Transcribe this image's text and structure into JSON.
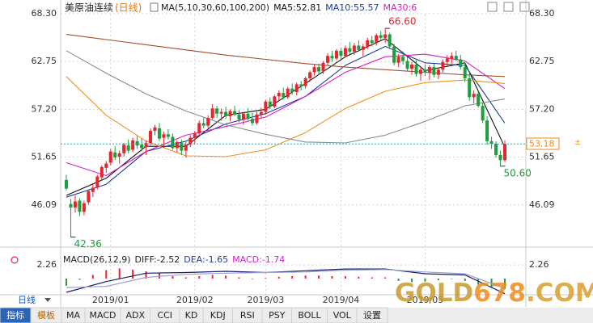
{
  "chart_data": {
    "type": "candlestick",
    "title": "美原油连续",
    "period": "(日线)",
    "indicator": "MA(5,10,30,60,100,200)",
    "period_label": "日线",
    "categories": [
      null,
      null,
      null,
      null,
      null,
      null,
      null,
      null,
      null,
      null,
      "2019/01",
      null,
      null,
      null,
      null,
      null,
      null,
      null,
      null,
      null,
      null,
      null,
      null,
      null,
      null,
      null,
      null,
      null,
      null,
      "2019/02",
      null,
      null,
      null,
      null,
      null,
      null,
      null,
      null,
      null,
      null,
      null,
      null,
      null,
      null,
      null,
      "2019/03",
      null,
      null,
      null,
      null,
      null,
      null,
      null,
      null,
      null,
      null,
      null,
      null,
      null,
      null,
      null,
      null,
      "2019/04",
      null,
      null,
      null,
      null,
      null,
      null,
      null,
      null,
      null,
      null,
      null,
      null,
      null,
      null,
      null,
      null,
      null,
      null,
      "2019/05",
      null,
      null,
      null,
      null,
      null,
      null,
      null,
      null,
      null,
      null,
      null,
      null,
      null,
      null,
      null,
      null,
      null,
      null
    ],
    "candles": [
      [
        49.0,
        49.6,
        47.8,
        48.0
      ],
      [
        46.2,
        46.8,
        42.36,
        45.8
      ],
      [
        45.8,
        47.2,
        45.2,
        46.5
      ],
      [
        46.6,
        46.9,
        44.8,
        45.3
      ],
      [
        45.3,
        46.6,
        44.9,
        46.3
      ],
      [
        46.4,
        47.9,
        46.1,
        47.7
      ],
      [
        47.6,
        48.5,
        47.0,
        48.1
      ],
      [
        48.2,
        49.6,
        47.9,
        49.4
      ],
      [
        49.3,
        50.7,
        48.9,
        50.5
      ],
      [
        50.4,
        51.2,
        49.8,
        50.9
      ],
      [
        51.0,
        52.6,
        50.7,
        52.3
      ],
      [
        52.2,
        52.9,
        51.3,
        51.6
      ],
      [
        51.7,
        52.4,
        50.9,
        52.1
      ],
      [
        52.1,
        53.3,
        51.7,
        53.1
      ],
      [
        53.0,
        53.7,
        52.1,
        52.4
      ],
      [
        52.5,
        53.9,
        52.2,
        53.6
      ],
      [
        53.5,
        54.1,
        52.6,
        53.0
      ],
      [
        53.1,
        53.8,
        52.3,
        52.7
      ],
      [
        52.8,
        53.6,
        51.9,
        53.3
      ],
      [
        53.3,
        55.0,
        53.0,
        54.7
      ],
      [
        54.7,
        55.4,
        54.2,
        55.1
      ],
      [
        55.0,
        55.6,
        53.5,
        53.8
      ],
      [
        53.9,
        54.6,
        52.9,
        54.3
      ],
      [
        54.3,
        54.9,
        53.7,
        54.0
      ],
      [
        54.0,
        54.4,
        52.5,
        52.7
      ],
      [
        52.7,
        53.6,
        52.2,
        53.4
      ],
      [
        53.3,
        53.7,
        51.9,
        52.4
      ],
      [
        52.4,
        53.4,
        51.6,
        53.1
      ],
      [
        53.1,
        54.2,
        52.8,
        53.9
      ],
      [
        53.9,
        54.7,
        53.2,
        54.4
      ],
      [
        54.4,
        55.9,
        54.2,
        55.6
      ],
      [
        55.6,
        56.2,
        55.0,
        55.3
      ],
      [
        55.3,
        56.5,
        55.0,
        56.2
      ],
      [
        56.2,
        57.8,
        56.0,
        57.3
      ],
      [
        57.3,
        57.6,
        56.2,
        56.7
      ],
      [
        56.7,
        57.3,
        55.9,
        56.9
      ],
      [
        56.9,
        57.5,
        56.1,
        56.4
      ],
      [
        56.4,
        57.2,
        55.8,
        57.0
      ],
      [
        57.0,
        57.6,
        56.4,
        56.6
      ],
      [
        56.6,
        57.1,
        55.7,
        56.0
      ],
      [
        56.0,
        56.9,
        55.4,
        56.7
      ],
      [
        56.7,
        57.3,
        55.9,
        56.1
      ],
      [
        56.1,
        56.8,
        55.3,
        55.6
      ],
      [
        55.6,
        56.9,
        55.4,
        56.6
      ],
      [
        56.6,
        57.4,
        56.1,
        56.9
      ],
      [
        56.9,
        58.3,
        56.6,
        58.1
      ],
      [
        58.1,
        58.6,
        57.2,
        57.5
      ],
      [
        57.5,
        58.9,
        57.3,
        58.7
      ],
      [
        58.7,
        59.4,
        58.2,
        59.1
      ],
      [
        59.1,
        59.7,
        58.3,
        58.6
      ],
      [
        58.6,
        59.8,
        58.4,
        59.6
      ],
      [
        59.6,
        60.2,
        58.9,
        59.2
      ],
      [
        59.2,
        60.3,
        58.8,
        60.1
      ],
      [
        60.1,
        60.5,
        59.4,
        59.9
      ],
      [
        59.9,
        61.0,
        59.6,
        60.8
      ],
      [
        60.8,
        61.7,
        60.4,
        61.5
      ],
      [
        61.5,
        62.4,
        61.1,
        62.1
      ],
      [
        62.1,
        62.5,
        61.2,
        61.6
      ],
      [
        61.6,
        62.8,
        61.3,
        62.6
      ],
      [
        62.6,
        63.7,
        62.3,
        63.4
      ],
      [
        63.4,
        64.0,
        62.7,
        63.1
      ],
      [
        63.1,
        64.2,
        62.9,
        64.0
      ],
      [
        64.0,
        64.3,
        63.0,
        63.4
      ],
      [
        63.4,
        64.6,
        63.2,
        64.3
      ],
      [
        64.3,
        65.0,
        63.6,
        63.9
      ],
      [
        63.9,
        64.9,
        63.5,
        64.6
      ],
      [
        64.6,
        65.2,
        63.9,
        64.1
      ],
      [
        64.1,
        64.8,
        63.4,
        64.5
      ],
      [
        64.5,
        65.5,
        64.2,
        65.2
      ],
      [
        65.2,
        65.7,
        64.5,
        64.9
      ],
      [
        64.9,
        66.0,
        64.6,
        65.8
      ],
      [
        65.8,
        66.3,
        65.2,
        65.5
      ],
      [
        65.5,
        66.6,
        64.9,
        65.9
      ],
      [
        65.9,
        66.1,
        64.2,
        64.5
      ],
      [
        64.5,
        64.8,
        62.3,
        62.6
      ],
      [
        62.6,
        63.6,
        62.1,
        63.3
      ],
      [
        63.3,
        63.9,
        62.4,
        62.8
      ],
      [
        62.8,
        63.3,
        61.6,
        61.9
      ],
      [
        61.9,
        62.7,
        61.2,
        62.4
      ],
      [
        62.4,
        62.9,
        61.0,
        61.3
      ],
      [
        61.3,
        62.1,
        60.5,
        61.8
      ],
      [
        61.8,
        62.4,
        61.1,
        61.5
      ],
      [
        61.5,
        62.3,
        60.6,
        62.1
      ],
      [
        62.1,
        62.5,
        60.9,
        61.2
      ],
      [
        61.2,
        62.0,
        60.7,
        61.8
      ],
      [
        61.8,
        63.0,
        61.5,
        62.7
      ],
      [
        62.7,
        63.5,
        62.2,
        63.1
      ],
      [
        63.1,
        63.8,
        62.5,
        63.4
      ],
      [
        63.4,
        64.0,
        62.8,
        63.0
      ],
      [
        63.0,
        63.5,
        61.8,
        62.1
      ],
      [
        62.1,
        62.6,
        60.4,
        60.8
      ],
      [
        60.8,
        61.3,
        58.2,
        58.6
      ],
      [
        58.6,
        59.4,
        57.9,
        59.0
      ],
      [
        59.0,
        59.3,
        57.4,
        57.6
      ],
      [
        57.6,
        58.0,
        55.6,
        55.9
      ],
      [
        55.9,
        56.4,
        53.1,
        53.5
      ],
      [
        53.5,
        54.0,
        52.6,
        53.2
      ],
      [
        53.2,
        53.5,
        51.6,
        51.9
      ],
      [
        51.9,
        52.4,
        50.6,
        51.3
      ],
      [
        51.3,
        53.6,
        51.1,
        53.18
      ]
    ],
    "up_color": "#e8252b",
    "down_color": "#1e9e3e",
    "ylim": [
      41.58,
      69.14
    ],
    "yticks": [
      {
        "value": 68.3,
        "label": "68.30"
      },
      62.75,
      {
        "value": 57.2,
        "label": "57.20"
      },
      51.65,
      46.09
    ],
    "last_price": 53.18,
    "annotations": [
      {
        "value": 66.6,
        "label": "66.60"
      },
      {
        "value": 50.6,
        "label": "50.60"
      },
      {
        "value": 42.36,
        "label": "42.36"
      }
    ],
    "ma_x": [
      0,
      9,
      18,
      27,
      36,
      45,
      54,
      63,
      72,
      81,
      90,
      99
    ],
    "ma_series": [
      {
        "name": "MA5:52.81",
        "color": "#111111",
        "values": [
          47.2,
          49.2,
          52.9,
          52.9,
          56.5,
          57.2,
          60.2,
          63.3,
          65.4,
          61.7,
          62.6,
          52.8
        ]
      },
      {
        "name": "MA10:55.57",
        "color": "#1f3c9b",
        "values": [
          47.0,
          48.5,
          52.3,
          53.5,
          55.5,
          56.7,
          58.7,
          62.3,
          64.5,
          62.6,
          62.3,
          55.6
        ]
      },
      {
        "name": "MA30:6",
        "color": "#d81ec8",
        "values": [
          51.0,
          49.5,
          52.3,
          54.2,
          55.2,
          56.3,
          58.7,
          61.5,
          63.3,
          63.6,
          62.8,
          59.6
        ]
      },
      {
        "color": "#f0901e",
        "values": [
          61.0,
          56.5,
          53.5,
          51.8,
          51.7,
          52.5,
          54.5,
          57.3,
          59.3,
          60.3,
          60.6,
          60.2
        ]
      },
      {
        "color": "#8c8c8c",
        "values": [
          64.0,
          61.4,
          59.0,
          57.0,
          55.4,
          54.3,
          53.4,
          53.3,
          54.2,
          55.8,
          57.6,
          58.4
        ]
      },
      {
        "color": "#a0502d",
        "values": [
          65.9,
          65.3,
          64.7,
          64.1,
          63.5,
          63.0,
          62.5,
          62.1,
          61.8,
          61.5,
          61.2,
          61.0
        ]
      }
    ],
    "macd": {
      "title": "MACD(26,12,9)",
      "ylim": [
        -2.7,
        3.9
      ],
      "yticks": [
        2.26
      ],
      "line_x": [
        0,
        9,
        18,
        27,
        36,
        45,
        54,
        63,
        72,
        81,
        90,
        99
      ],
      "lines": [
        {
          "name": "DIFF:-2.52",
          "color": "#1a1a6e",
          "values": [
            -2.3,
            -0.5,
            0.9,
            1.0,
            1.2,
            1.0,
            1.3,
            1.6,
            1.6,
            0.8,
            0.6,
            -2.52
          ]
        },
        {
          "name": "DEA:-1.65",
          "color": "#9aa3c8",
          "values": [
            -1.5,
            -1.3,
            0.2,
            0.7,
            0.9,
            1.0,
            1.1,
            1.4,
            1.5,
            1.1,
            0.8,
            -1.65
          ]
        }
      ],
      "hist_name": "MACD:-1.74",
      "hist_color": "#d81ec8",
      "hist_x": [
        0,
        3,
        6,
        9,
        12,
        15,
        18,
        21,
        24,
        27,
        30,
        33,
        36,
        39,
        42,
        45,
        48,
        51,
        54,
        57,
        60,
        63,
        66,
        69,
        72,
        75,
        78,
        81,
        84,
        87,
        90,
        93,
        96,
        99
      ],
      "hist": [
        -1.2,
        -0.2,
        0.6,
        1.4,
        1.7,
        1.5,
        1.2,
        0.9,
        0.4,
        0.2,
        0.4,
        0.6,
        0.5,
        0.2,
        -0.1,
        0.1,
        0.3,
        0.4,
        0.5,
        0.5,
        0.4,
        0.4,
        0.3,
        0.2,
        0.2,
        -0.4,
        -0.6,
        -0.5,
        -0.3,
        -0.1,
        -0.4,
        -1.0,
        -1.5,
        -1.74
      ]
    },
    "tabs": [
      "指标",
      "模板",
      "MA",
      "MACD",
      "ADX",
      "CCI",
      "KD",
      "KDJ",
      "RSI",
      "PSY",
      "BOLL",
      "VOL",
      "设置"
    ],
    "watermark": [
      "GOLD",
      "678",
      ".COM"
    ]
  }
}
